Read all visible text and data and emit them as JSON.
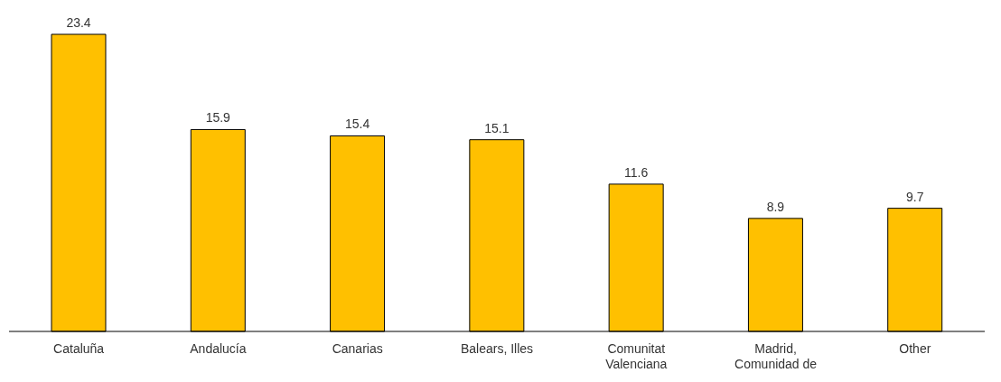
{
  "chart_data": {
    "type": "bar",
    "categories": [
      "Cataluña",
      "Andalucía",
      "Canarias",
      "Balears, Illes",
      "Comunitat Valenciana",
      "Madrid, Comunidad de",
      "Other"
    ],
    "values": [
      23.4,
      15.9,
      15.4,
      15.1,
      11.6,
      8.9,
      9.7
    ],
    "color": "#ffc000",
    "data_labels": true,
    "grid": false,
    "legend": false
  }
}
